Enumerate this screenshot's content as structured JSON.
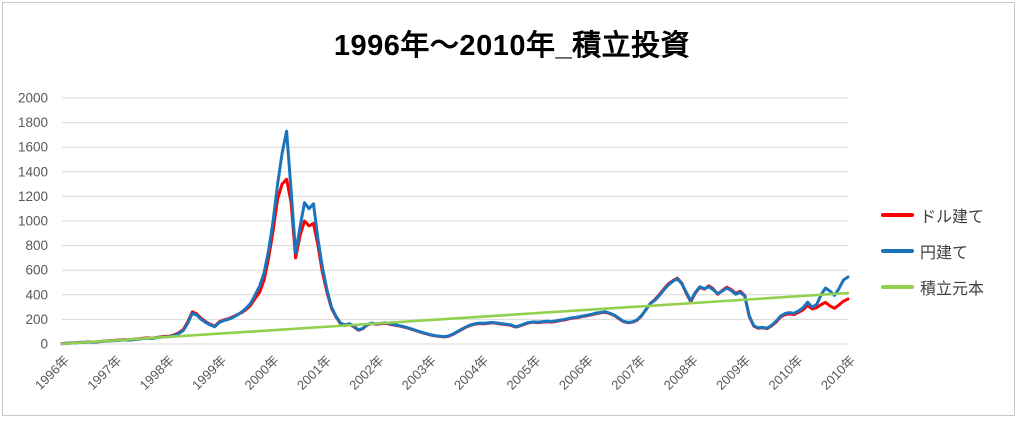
{
  "chart_data": {
    "type": "line",
    "title": "1996年～2010年_積立投資",
    "ylim": [
      0,
      2000
    ],
    "y_ticks": [
      2000,
      1800,
      1600,
      1400,
      1200,
      1000,
      800,
      600,
      400,
      200,
      0
    ],
    "x_tick_labels": [
      "1996年",
      "1997年",
      "1998年",
      "1999年",
      "2000年",
      "2001年",
      "2002年",
      "2003年",
      "2004年",
      "2005年",
      "2006年",
      "2007年",
      "2008年",
      "2009年",
      "2010年",
      "2010年"
    ],
    "grid": "horizontal",
    "gridline_color": "#d9d9d9",
    "axis_label_color": "#595959",
    "legend_position": "right",
    "legend_text_color": "#404040",
    "series": [
      {
        "name": "ドル建て",
        "color": "#ff0000",
        "values": [
          3,
          6,
          8,
          10,
          13,
          15,
          17,
          16,
          19,
          22,
          25,
          28,
          30,
          33,
          36,
          34,
          38,
          42,
          47,
          50,
          48,
          53,
          58,
          62,
          64,
          75,
          92,
          118,
          180,
          262,
          245,
          208,
          182,
          160,
          145,
          180,
          195,
          205,
          220,
          238,
          255,
          280,
          315,
          370,
          420,
          520,
          700,
          920,
          1180,
          1300,
          1340,
          1150,
          700,
          880,
          1000,
          960,
          980,
          800,
          580,
          420,
          290,
          220,
          165,
          150,
          160,
          140,
          112,
          125,
          155,
          168,
          160,
          165,
          168,
          162,
          154,
          147,
          139,
          129,
          117,
          106,
          94,
          84,
          74,
          66,
          62,
          58,
          63,
          77,
          97,
          117,
          137,
          152,
          162,
          167,
          165,
          169,
          172,
          167,
          162,
          157,
          151,
          137,
          147,
          161,
          172,
          177,
          174,
          178,
          181,
          178,
          184,
          191,
          196,
          206,
          211,
          216,
          224,
          231,
          238,
          248,
          254,
          258,
          246,
          232,
          206,
          182,
          172,
          177,
          192,
          228,
          278,
          330,
          362,
          402,
          448,
          488,
          515,
          535,
          495,
          412,
          342,
          415,
          460,
          446,
          472,
          448,
          405,
          435,
          462,
          442,
          412,
          428,
          395,
          225,
          146,
          128,
          132,
          125,
          148,
          178,
          220,
          240,
          245,
          240,
          258,
          278,
          315,
          285,
          295,
          320,
          338,
          310,
          290,
          318,
          348,
          366
        ]
      },
      {
        "name": "円建て",
        "color": "#1b75bc",
        "values": [
          2,
          5,
          7,
          9,
          12,
          14,
          16,
          15,
          18,
          21,
          24,
          26,
          28,
          31,
          34,
          32,
          36,
          40,
          44,
          47,
          45,
          50,
          55,
          58,
          60,
          70,
          85,
          110,
          170,
          250,
          235,
          200,
          175,
          155,
          140,
          175,
          190,
          200,
          215,
          235,
          260,
          290,
          330,
          400,
          470,
          580,
          760,
          1000,
          1300,
          1550,
          1730,
          1250,
          740,
          950,
          1150,
          1100,
          1140,
          850,
          620,
          440,
          300,
          225,
          170,
          155,
          165,
          145,
          115,
          128,
          158,
          170,
          163,
          168,
          172,
          166,
          158,
          150,
          142,
          132,
          120,
          108,
          96,
          86,
          76,
          68,
          64,
          60,
          65,
          80,
          100,
          120,
          140,
          155,
          165,
          170,
          168,
          172,
          175,
          170,
          165,
          160,
          155,
          140,
          150,
          165,
          175,
          180,
          178,
          182,
          185,
          182,
          188,
          195,
          200,
          210,
          215,
          220,
          228,
          235,
          242,
          252,
          258,
          262,
          250,
          235,
          210,
          185,
          175,
          180,
          195,
          230,
          280,
          330,
          355,
          395,
          440,
          480,
          510,
          530,
          490,
          420,
          350,
          420,
          465,
          450,
          465,
          440,
          410,
          430,
          455,
          435,
          405,
          420,
          390,
          230,
          150,
          132,
          135,
          128,
          152,
          185,
          228,
          248,
          255,
          250,
          270,
          295,
          340,
          300,
          320,
          400,
          455,
          430,
          395,
          450,
          520,
          545
        ]
      },
      {
        "name": "積立元本",
        "color": "#92d050",
        "values": [
          2,
          415
        ]
      }
    ]
  }
}
